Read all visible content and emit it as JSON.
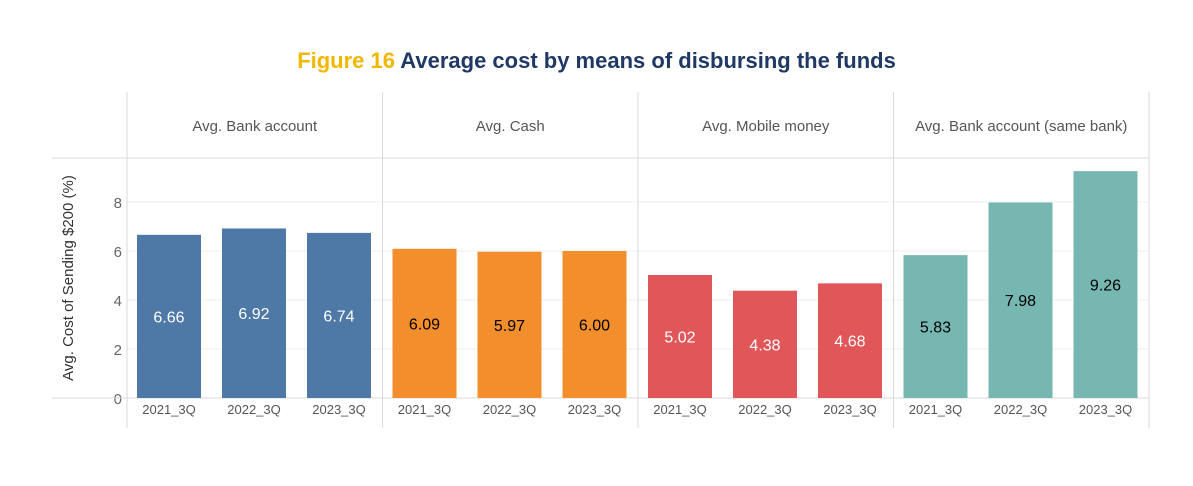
{
  "chart_data": {
    "type": "bar",
    "title_prefix": "Figure 16",
    "title": "Average cost by means of disbursing the funds",
    "ylabel": "Avg. Cost of Sending $200 (%)",
    "xlabel": "",
    "ylim": [
      0,
      9.75
    ],
    "yticks": [
      0,
      2,
      4,
      6,
      8
    ],
    "grid": true,
    "categories": [
      "2021_3Q",
      "2022_3Q",
      "2023_3Q"
    ],
    "panels": [
      {
        "name": "Avg. Bank account",
        "color": "#4e79a7",
        "label_color": "#ffffff",
        "values": [
          6.66,
          6.92,
          6.74
        ],
        "labels": [
          "6.66",
          "6.92",
          "6.74"
        ]
      },
      {
        "name": "Avg. Cash",
        "color": "#f28e2b",
        "label_color": "#000000",
        "values": [
          6.09,
          5.97,
          6.0
        ],
        "labels": [
          "6.09",
          "5.97",
          "6.00"
        ]
      },
      {
        "name": "Avg. Mobile money",
        "color": "#e15759",
        "label_color": "#ffffff",
        "values": [
          5.02,
          4.38,
          4.68
        ],
        "labels": [
          "5.02",
          "4.38",
          "4.68"
        ]
      },
      {
        "name": "Avg. Bank account (same bank)",
        "color": "#76b7b2",
        "label_color": "#000000",
        "values": [
          5.83,
          7.98,
          9.26
        ],
        "labels": [
          "5.83",
          "7.98",
          "9.26"
        ]
      }
    ]
  }
}
